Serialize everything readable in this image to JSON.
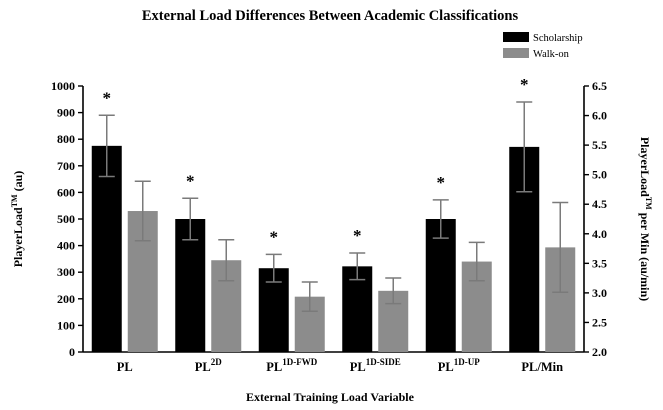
{
  "chart_data": {
    "type": "bar",
    "title": "External Load Differences Between Academic Classifications",
    "xlabel": "External Training Load Variable",
    "ylabel_main": "PlayerLoad",
    "ylabel_main_sup": "TM",
    "ylabel_main_unit": " (au)",
    "ylabel_right": "PlayerLoad",
    "ylabel_right_sup": "TM",
    "ylabel_right_unit": " per Min (au/min)",
    "ylim": [
      0,
      1000
    ],
    "yticks": [
      "0",
      "100",
      "200",
      "300",
      "400",
      "500",
      "600",
      "700",
      "800",
      "900",
      "1000"
    ],
    "ylim_right": [
      2.0,
      6.5
    ],
    "yticks_right": [
      "2.0",
      "2.5",
      "3.0",
      "3.5",
      "4.0",
      "4.5",
      "5.0",
      "5.5",
      "6.0",
      "6.5"
    ],
    "categories": [
      {
        "base": "PL",
        "sup": ""
      },
      {
        "base": "PL",
        "sup": "2D"
      },
      {
        "base": "PL",
        "sup": "1D-FWD"
      },
      {
        "base": "PL",
        "sup": "1D-SIDE"
      },
      {
        "base": "PL",
        "sup": "1D-UP"
      },
      {
        "base": "PL/Min",
        "sup": ""
      }
    ],
    "secondary_axis_categories": [
      5
    ],
    "series": [
      {
        "name": "Scholarship",
        "color": "#000000",
        "values": [
          775,
          500,
          315,
          322,
          500,
          5.47
        ],
        "errors": [
          115,
          78,
          52,
          50,
          72,
          0.76
        ]
      },
      {
        "name": "Walk-on",
        "color": "#8c8c8c",
        "values": [
          530,
          345,
          208,
          230,
          340,
          3.77
        ],
        "errors": [
          112,
          77,
          55,
          48,
          72,
          0.76
        ]
      }
    ],
    "significance_marker": "*",
    "significant_categories": [
      0,
      1,
      2,
      3,
      4,
      5
    ],
    "legend_position": "top-right",
    "grid": false
  }
}
